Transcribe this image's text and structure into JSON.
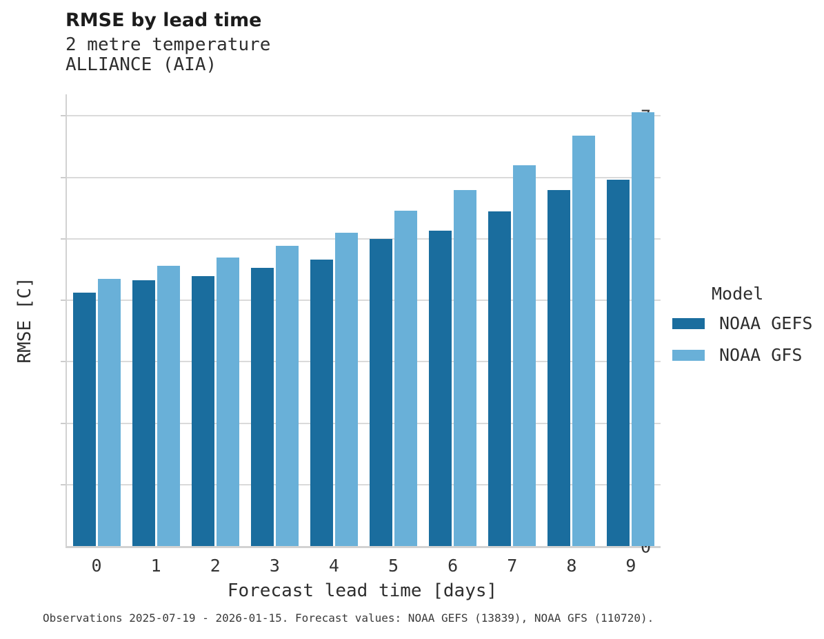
{
  "header": {
    "title": "RMSE by lead time",
    "subtitle_line1": "2 metre temperature",
    "subtitle_line2": "ALLIANCE (AIA)"
  },
  "chart_data": {
    "type": "bar",
    "title": "RMSE by lead time",
    "subtitle": [
      "2 metre temperature",
      "ALLIANCE (AIA)"
    ],
    "categories": [
      "0",
      "1",
      "2",
      "3",
      "4",
      "5",
      "6",
      "7",
      "8",
      "9"
    ],
    "series": [
      {
        "name": "NOAA GEFS",
        "color": "#1a6d9e",
        "values": [
          4.12,
          4.33,
          4.39,
          4.53,
          4.66,
          5.0,
          5.13,
          5.44,
          5.79,
          5.96
        ]
      },
      {
        "name": "NOAA GFS",
        "color": "#69b0d8",
        "values": [
          4.35,
          4.56,
          4.7,
          4.88,
          5.1,
          5.46,
          5.79,
          6.2,
          6.68,
          7.06
        ]
      }
    ],
    "xlabel": "Forecast lead time [days]",
    "ylabel": "RMSE [C]",
    "ylim": [
      0,
      7.35
    ],
    "yticks": [
      0,
      1,
      2,
      3,
      4,
      5,
      6,
      7
    ],
    "grid": "horizontal",
    "gridline_color": "#dadada",
    "legend_title": "Model",
    "legend_position": "right"
  },
  "legend": {
    "title": "Model",
    "items": [
      {
        "label": "NOAA GEFS",
        "color": "#1a6d9e"
      },
      {
        "label": "NOAA GFS",
        "color": "#69b0d8"
      }
    ]
  },
  "footer": {
    "note": "Observations 2025-07-19 - 2026-01-15. Forecast values: NOAA GEFS (13839), NOAA GFS (110720)."
  }
}
